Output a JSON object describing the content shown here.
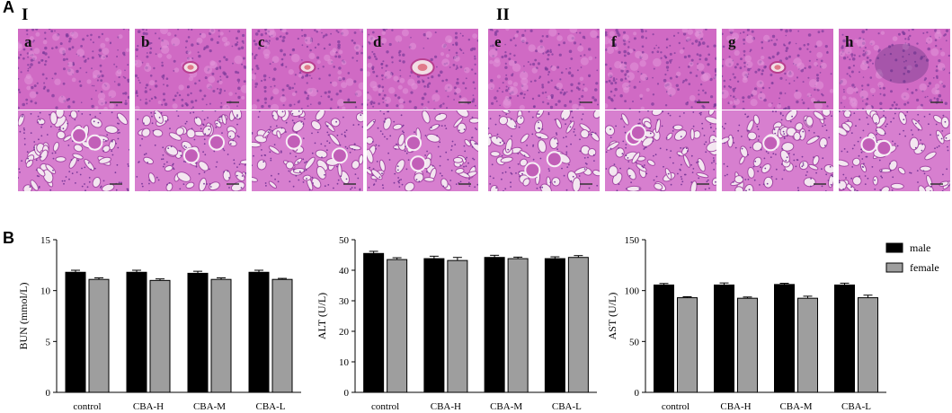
{
  "panels": {
    "a_label": "A",
    "b_label": "B",
    "group_I": "I",
    "group_II": "II"
  },
  "tiles": [
    {
      "letter": "a",
      "tissue": "liver",
      "vessel": "none"
    },
    {
      "letter": "b",
      "tissue": "liver",
      "vessel": "small"
    },
    {
      "letter": "c",
      "tissue": "liver",
      "vessel": "small"
    },
    {
      "letter": "d",
      "tissue": "liver",
      "vessel": "large"
    },
    {
      "letter": "e",
      "tissue": "liver",
      "vessel": "none"
    },
    {
      "letter": "f",
      "tissue": "liver",
      "vessel": "none"
    },
    {
      "letter": "g",
      "tissue": "liver",
      "vessel": "small"
    },
    {
      "letter": "h",
      "tissue": "liver",
      "vessel": "dark"
    },
    {
      "letter": "",
      "tissue": "kidney"
    },
    {
      "letter": "",
      "tissue": "kidney"
    },
    {
      "letter": "",
      "tissue": "kidney"
    },
    {
      "letter": "",
      "tissue": "kidney"
    },
    {
      "letter": "",
      "tissue": "kidney"
    },
    {
      "letter": "",
      "tissue": "kidney"
    },
    {
      "letter": "",
      "tissue": "kidney"
    },
    {
      "letter": "",
      "tissue": "kidney"
    }
  ],
  "colors": {
    "tissue_base": "#d06ac4",
    "tissue_pink": "#e49adb",
    "nucleus": "#7b3a9a",
    "male": "#000000",
    "female": "#9e9e9e"
  },
  "legend": [
    {
      "name": "male",
      "color": "#000000"
    },
    {
      "name": "female",
      "color": "#9e9e9e"
    }
  ],
  "chart_data": [
    {
      "type": "bar",
      "ylabel": "BUN (mmol/L)",
      "ylim": [
        0,
        15
      ],
      "yticks": [
        0,
        5,
        10,
        15
      ],
      "categories": [
        "control",
        "CBA-H",
        "CBA-M",
        "CBA-L"
      ],
      "series": [
        {
          "name": "male",
          "values": [
            11.8,
            11.8,
            11.7,
            11.8
          ],
          "errors": [
            0.2,
            0.2,
            0.2,
            0.2
          ]
        },
        {
          "name": "female",
          "values": [
            11.1,
            11.0,
            11.1,
            11.1
          ],
          "errors": [
            0.15,
            0.15,
            0.15,
            0.1
          ]
        }
      ]
    },
    {
      "type": "bar",
      "ylabel": "ALT (U/L)",
      "ylim": [
        0,
        50
      ],
      "yticks": [
        0,
        10,
        20,
        30,
        40,
        50
      ],
      "categories": [
        "control",
        "CBA-H",
        "CBA-M",
        "CBA-L"
      ],
      "series": [
        {
          "name": "male",
          "values": [
            45.5,
            43.8,
            44.2,
            43.8
          ],
          "errors": [
            0.7,
            0.8,
            0.7,
            0.6
          ]
        },
        {
          "name": "female",
          "values": [
            43.5,
            43.2,
            43.8,
            44.2
          ],
          "errors": [
            0.6,
            1.0,
            0.5,
            0.6
          ]
        }
      ]
    },
    {
      "type": "bar",
      "ylabel": "AST (U/L)",
      "ylim": [
        0,
        150
      ],
      "yticks": [
        0,
        50,
        100,
        150
      ],
      "categories": [
        "control",
        "CBA-H",
        "CBA-M",
        "CBA-L"
      ],
      "series": [
        {
          "name": "male",
          "values": [
            105.5,
            105.5,
            106.0,
            105.5
          ],
          "errors": [
            1.5,
            2.0,
            1.2,
            1.8
          ]
        },
        {
          "name": "female",
          "values": [
            93.0,
            92.5,
            92.5,
            93.0
          ],
          "errors": [
            1.0,
            1.2,
            2.0,
            2.5
          ]
        }
      ]
    }
  ]
}
